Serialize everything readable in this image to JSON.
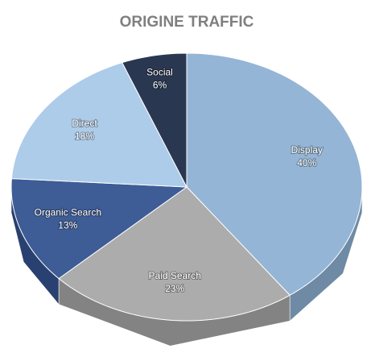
{
  "chart_data": {
    "type": "pie",
    "title": "ORIGINE TRAFFIC",
    "categories": [
      "Display",
      "Paid Search",
      "Organic Search",
      "Direct",
      "Social"
    ],
    "values": [
      40,
      23,
      13,
      18,
      6
    ],
    "value_labels": [
      "40%",
      "23%",
      "13%",
      "18%",
      "6%"
    ],
    "colors": [
      "#8eb1d3",
      "#a8a8a8",
      "#34538f",
      "#a9c9e8",
      "#1f2c48"
    ]
  }
}
